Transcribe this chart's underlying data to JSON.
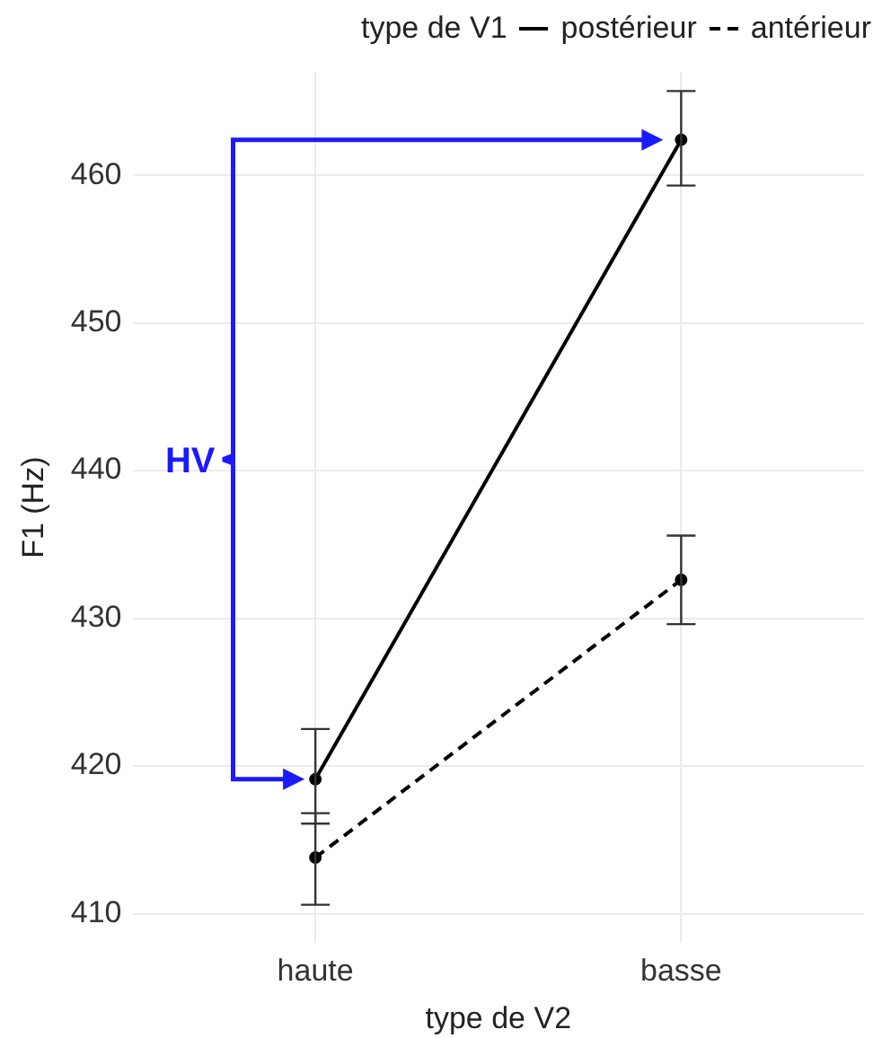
{
  "chart_data": {
    "type": "line",
    "legend_title": "type de V1",
    "xlabel": "type de V2",
    "ylabel": "F1 (Hz)",
    "categories": [
      "haute",
      "basse"
    ],
    "series": [
      {
        "name": "postérieur",
        "color": "#000000",
        "values": [
          419.1,
          462.4
        ],
        "errors": [
          [
            416.1,
            422.5
          ],
          [
            459.3,
            465.7
          ]
        ],
        "line_style": "solid"
      },
      {
        "name": "antérieur",
        "color": "#000000",
        "values": [
          413.8,
          432.6
        ],
        "errors": [
          [
            410.6,
            416.8
          ],
          [
            429.6,
            435.6
          ]
        ],
        "line_style": "dashed"
      }
    ],
    "ylim": [
      408,
      467
    ],
    "yticks": [
      410,
      420,
      430,
      440,
      450,
      460
    ],
    "grid": true,
    "legend": "top right",
    "marker": "circle",
    "annotations": [
      "HV"
    ]
  }
}
